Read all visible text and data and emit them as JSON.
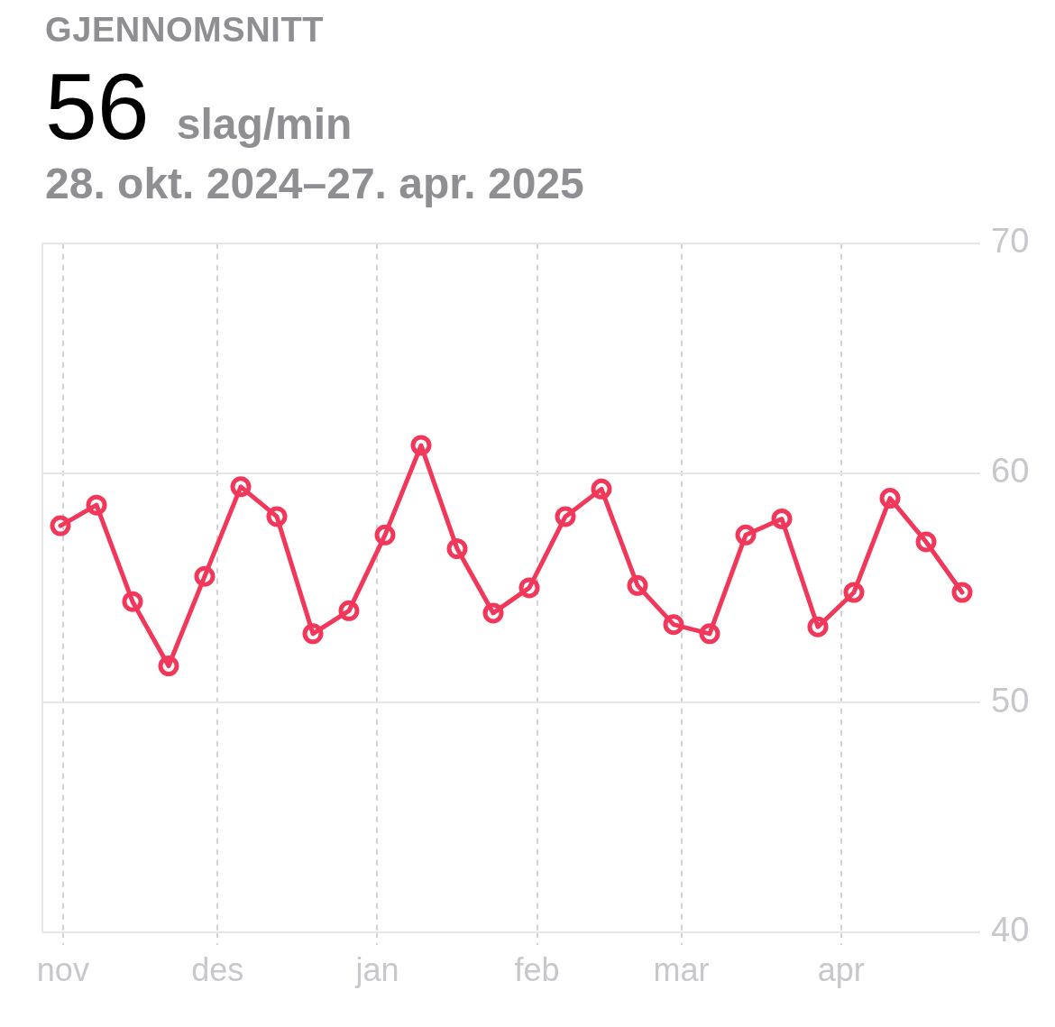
{
  "chart_data": {
    "type": "line",
    "title": "GJENNOMSNITT",
    "subtitle": "28. okt. 2024–27. apr. 2025",
    "annotations": [
      "56",
      "slag/min"
    ],
    "x": [
      "2024-10-31T12:00",
      "2024-11-07T12:00",
      "2024-11-14T12:00",
      "2024-11-21T12:00",
      "2024-11-28T12:00",
      "2024-12-05T12:00",
      "2024-12-12T12:00",
      "2024-12-19T12:00",
      "2024-12-26T12:00",
      "2025-01-02T12:00",
      "2025-01-09T12:00",
      "2025-01-16T12:00",
      "2025-01-23T12:00",
      "2025-01-30T12:00",
      "2025-02-06T12:00",
      "2025-02-13T12:00",
      "2025-02-20T12:00",
      "2025-02-27T12:00",
      "2025-03-06T12:00",
      "2025-03-13T12:00",
      "2025-03-20T12:00",
      "2025-03-27T12:00",
      "2025-04-03T12:00",
      "2025-04-10T12:00",
      "2025-04-17T12:00",
      "2025-04-24T12:00"
    ],
    "values": [
      57.7,
      58.6,
      54.4,
      51.6,
      55.5,
      59.4,
      58.1,
      53.0,
      54.0,
      57.3,
      61.2,
      56.7,
      53.9,
      55.0,
      58.1,
      59.3,
      55.1,
      53.4,
      53.0,
      57.3,
      58.0,
      53.3,
      54.8,
      58.9,
      57.0,
      54.8
    ],
    "color": "#f2385a",
    "xlim": [
      "2024-10-28",
      "2025-04-28"
    ],
    "xticks": [
      {
        "value": "2024-11-01",
        "label": "nov"
      },
      {
        "value": "2024-12-01",
        "label": "des"
      },
      {
        "value": "2025-01-01",
        "label": "jan"
      },
      {
        "value": "2025-02-01",
        "label": "feb"
      },
      {
        "value": "2025-03-01",
        "label": "mar"
      },
      {
        "value": "2025-04-01",
        "label": "apr"
      }
    ],
    "ylim": [
      40,
      70
    ],
    "yticks": [
      40,
      50,
      60,
      70
    ],
    "grid": true,
    "marker": "circle",
    "line_style": "solid"
  }
}
